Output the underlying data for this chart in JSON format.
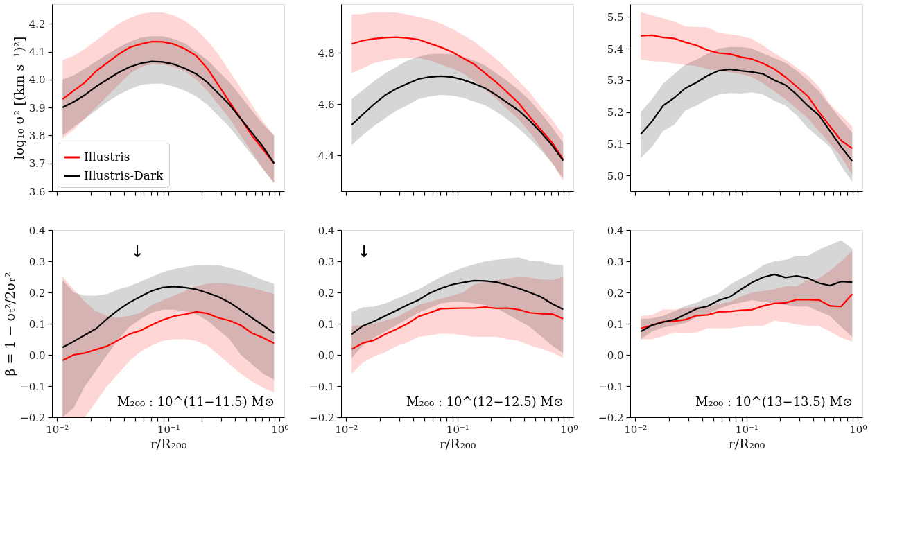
{
  "chart_data": [
    {
      "type": "line",
      "ylabel": "log₁₀ σ² [(km s⁻¹)²]",
      "log": "x",
      "tick_labels": "y",
      "legend": "bottom left",
      "xlim": [
        0.009,
        1.1
      ],
      "xticks": [
        {
          "value": 0.01,
          "label": null
        },
        {
          "value": 0.02,
          "label": null
        },
        {
          "value": 0.03,
          "label": null
        },
        {
          "value": 0.04,
          "label": null
        },
        {
          "value": 0.05,
          "label": null
        },
        {
          "value": 0.06,
          "label": null
        },
        {
          "value": 0.07,
          "label": null
        },
        {
          "value": 0.08,
          "label": null
        },
        {
          "value": 0.09,
          "label": null
        },
        {
          "value": 0.1,
          "label": null
        },
        {
          "value": 0.2,
          "label": null
        },
        {
          "value": 0.3,
          "label": null
        },
        {
          "value": 0.4,
          "label": null
        },
        {
          "value": 0.5,
          "label": null
        },
        {
          "value": 0.6,
          "label": null
        },
        {
          "value": 0.7,
          "label": null
        },
        {
          "value": 0.8,
          "label": null
        },
        {
          "value": 0.9,
          "label": null
        },
        {
          "value": 1,
          "label": null
        }
      ],
      "ylim": [
        3.6,
        4.27
      ],
      "yticks": [
        3.6,
        3.7,
        3.8,
        3.9,
        {
          "value": 4,
          "label": "4.0"
        },
        4.1,
        4.2
      ],
      "x": [
        0.0112,
        0.0141,
        0.0178,
        0.0224,
        0.0282,
        0.0355,
        0.0447,
        0.0562,
        0.0708,
        0.0891,
        0.112,
        0.141,
        0.178,
        0.224,
        0.282,
        0.355,
        0.447,
        0.562,
        0.708,
        0.891
      ],
      "series": [
        {
          "name": "Illustris",
          "color": "#ff0000",
          "values": [
            3.93,
            3.96,
            3.99,
            4.03,
            4.06,
            4.09,
            4.115,
            4.127,
            4.136,
            4.135,
            4.127,
            4.11,
            4.085,
            4.04,
            3.98,
            3.92,
            3.86,
            3.8,
            3.75,
            3.7
          ],
          "lower": [
            3.79,
            3.82,
            3.86,
            3.9,
            3.94,
            3.98,
            4.02,
            4.045,
            4.055,
            4.055,
            4.045,
            4.03,
            4.0,
            3.96,
            3.91,
            3.86,
            3.8,
            3.74,
            3.68,
            3.63
          ],
          "upper": [
            4.07,
            4.085,
            4.11,
            4.14,
            4.17,
            4.2,
            4.22,
            4.235,
            4.24,
            4.24,
            4.23,
            4.21,
            4.18,
            4.14,
            4.09,
            4.03,
            3.97,
            3.91,
            3.85,
            3.8
          ]
        },
        {
          "name": "Illustris-Dark",
          "color": "#000000",
          "values": [
            3.9,
            3.92,
            3.945,
            3.975,
            4.0,
            4.025,
            4.045,
            4.058,
            4.065,
            4.063,
            4.055,
            4.04,
            4.02,
            3.99,
            3.95,
            3.91,
            3.86,
            3.81,
            3.76,
            3.7
          ],
          "lower": [
            3.8,
            3.83,
            3.86,
            3.89,
            3.92,
            3.945,
            3.965,
            3.98,
            3.985,
            3.985,
            3.975,
            3.96,
            3.94,
            3.91,
            3.87,
            3.83,
            3.78,
            3.73,
            3.68,
            3.63
          ],
          "upper": [
            4.0,
            4.015,
            4.04,
            4.065,
            4.09,
            4.115,
            4.135,
            4.15,
            4.155,
            4.155,
            4.145,
            4.13,
            4.1,
            4.07,
            4.03,
            3.99,
            3.94,
            3.89,
            3.84,
            3.8
          ]
        }
      ]
    },
    {
      "type": "line",
      "log": "x",
      "tick_labels": "y",
      "xlim": [
        0.009,
        1.1
      ],
      "xticks": [
        {
          "value": 0.01,
          "label": null
        },
        {
          "value": 0.02,
          "label": null
        },
        {
          "value": 0.03,
          "label": null
        },
        {
          "value": 0.04,
          "label": null
        },
        {
          "value": 0.05,
          "label": null
        },
        {
          "value": 0.06,
          "label": null
        },
        {
          "value": 0.07,
          "label": null
        },
        {
          "value": 0.08,
          "label": null
        },
        {
          "value": 0.09,
          "label": null
        },
        {
          "value": 0.1,
          "label": null
        },
        {
          "value": 0.2,
          "label": null
        },
        {
          "value": 0.3,
          "label": null
        },
        {
          "value": 0.4,
          "label": null
        },
        {
          "value": 0.5,
          "label": null
        },
        {
          "value": 0.6,
          "label": null
        },
        {
          "value": 0.7,
          "label": null
        },
        {
          "value": 0.8,
          "label": null
        },
        {
          "value": 0.9,
          "label": null
        },
        {
          "value": 1,
          "label": null
        }
      ],
      "ylim": [
        4.26,
        4.99
      ],
      "yticks": [
        4.4,
        4.6,
        4.8
      ],
      "x": [
        0.0112,
        0.0141,
        0.0178,
        0.0224,
        0.0282,
        0.0355,
        0.0447,
        0.0562,
        0.0708,
        0.0891,
        0.112,
        0.141,
        0.178,
        0.224,
        0.282,
        0.355,
        0.447,
        0.562,
        0.708,
        0.891
      ],
      "series": [
        {
          "color": "#ff0000",
          "values": [
            4.835,
            4.848,
            4.855,
            4.859,
            4.861,
            4.858,
            4.852,
            4.837,
            4.822,
            4.804,
            4.78,
            4.756,
            4.72,
            4.685,
            4.645,
            4.604,
            4.55,
            4.5,
            4.45,
            4.385
          ],
          "lower": [
            4.72,
            4.74,
            4.76,
            4.77,
            4.778,
            4.78,
            4.78,
            4.77,
            4.755,
            4.74,
            4.72,
            4.69,
            4.655,
            4.62,
            4.58,
            4.54,
            4.49,
            4.43,
            4.37,
            4.3
          ],
          "upper": [
            4.95,
            4.952,
            4.958,
            4.958,
            4.957,
            4.95,
            4.94,
            4.93,
            4.915,
            4.895,
            4.87,
            4.845,
            4.81,
            4.775,
            4.735,
            4.69,
            4.645,
            4.59,
            4.54,
            4.48
          ]
        },
        {
          "color": "#000000",
          "values": [
            4.519,
            4.56,
            4.6,
            4.635,
            4.66,
            4.68,
            4.698,
            4.706,
            4.709,
            4.706,
            4.695,
            4.68,
            4.662,
            4.635,
            4.605,
            4.575,
            4.535,
            4.49,
            4.44,
            4.38
          ],
          "lower": [
            4.44,
            4.48,
            4.515,
            4.545,
            4.575,
            4.595,
            4.62,
            4.63,
            4.636,
            4.633,
            4.625,
            4.61,
            4.595,
            4.57,
            4.54,
            4.505,
            4.465,
            4.42,
            4.37,
            4.31
          ],
          "upper": [
            4.62,
            4.655,
            4.69,
            4.72,
            4.745,
            4.77,
            4.785,
            4.795,
            4.797,
            4.795,
            4.785,
            4.77,
            4.75,
            4.72,
            4.69,
            4.655,
            4.615,
            4.565,
            4.51,
            4.45
          ]
        }
      ]
    },
    {
      "type": "line",
      "log": "x",
      "tick_labels": "y",
      "xlim": [
        0.009,
        1.1
      ],
      "xticks": [
        {
          "value": 0.01,
          "label": null
        },
        {
          "value": 0.02,
          "label": null
        },
        {
          "value": 0.03,
          "label": null
        },
        {
          "value": 0.04,
          "label": null
        },
        {
          "value": 0.05,
          "label": null
        },
        {
          "value": 0.06,
          "label": null
        },
        {
          "value": 0.07,
          "label": null
        },
        {
          "value": 0.08,
          "label": null
        },
        {
          "value": 0.09,
          "label": null
        },
        {
          "value": 0.1,
          "label": null
        },
        {
          "value": 0.2,
          "label": null
        },
        {
          "value": 0.3,
          "label": null
        },
        {
          "value": 0.4,
          "label": null
        },
        {
          "value": 0.5,
          "label": null
        },
        {
          "value": 0.6,
          "label": null
        },
        {
          "value": 0.7,
          "label": null
        },
        {
          "value": 0.8,
          "label": null
        },
        {
          "value": 0.9,
          "label": null
        },
        {
          "value": 1,
          "label": null
        }
      ],
      "ylim": [
        4.95,
        5.54
      ],
      "yticks": [
        {
          "value": 5,
          "label": "5.0"
        },
        5.1,
        5.2,
        5.3,
        5.4,
        5.5
      ],
      "x": [
        0.0112,
        0.0141,
        0.0178,
        0.0224,
        0.0282,
        0.0355,
        0.0447,
        0.0562,
        0.0708,
        0.0891,
        0.112,
        0.141,
        0.178,
        0.224,
        0.282,
        0.355,
        0.447,
        0.562,
        0.708,
        0.891
      ],
      "series": [
        {
          "color": "#ff0000",
          "values": [
            5.44,
            5.442,
            5.435,
            5.432,
            5.42,
            5.41,
            5.395,
            5.386,
            5.383,
            5.373,
            5.367,
            5.353,
            5.335,
            5.31,
            5.28,
            5.25,
            5.2,
            5.155,
            5.11,
            5.085
          ],
          "lower": [
            5.365,
            5.36,
            5.358,
            5.353,
            5.348,
            5.345,
            5.335,
            5.33,
            5.325,
            5.32,
            5.31,
            5.29,
            5.265,
            5.24,
            5.21,
            5.18,
            5.14,
            5.1,
            5.06,
            5.0
          ],
          "upper": [
            5.515,
            5.505,
            5.495,
            5.485,
            5.47,
            5.468,
            5.467,
            5.45,
            5.445,
            5.44,
            5.43,
            5.41,
            5.385,
            5.365,
            5.34,
            5.315,
            5.28,
            5.225,
            5.19,
            5.155
          ]
        },
        {
          "color": "#000000",
          "values": [
            5.13,
            5.17,
            5.22,
            5.245,
            5.275,
            5.293,
            5.315,
            5.33,
            5.335,
            5.33,
            5.326,
            5.32,
            5.3,
            5.285,
            5.255,
            5.22,
            5.19,
            5.14,
            5.09,
            5.045
          ],
          "lower": [
            5.055,
            5.09,
            5.14,
            5.16,
            5.205,
            5.22,
            5.24,
            5.255,
            5.26,
            5.258,
            5.262,
            5.255,
            5.235,
            5.22,
            5.19,
            5.15,
            5.12,
            5.09,
            5.03,
            4.98
          ],
          "upper": [
            5.2,
            5.24,
            5.29,
            5.32,
            5.35,
            5.365,
            5.385,
            5.4,
            5.405,
            5.405,
            5.4,
            5.385,
            5.37,
            5.355,
            5.33,
            5.3,
            5.265,
            5.22,
            5.175,
            5.135
          ]
        }
      ]
    },
    {
      "type": "line",
      "ylabel": "β = 1 − σₜ²/2σᵣ²",
      "xlabel": "r/R₂₀₀",
      "log": "x",
      "annotations": [
        "↓",
        "M₂₀₀ : 10^(11−11.5) M⊙"
      ],
      "xlim": [
        0.009,
        1.1
      ],
      "xticks": [
        {
          "value": 0.01,
          "label": "10⁻²"
        },
        {
          "value": 0.02,
          "label": null
        },
        {
          "value": 0.03,
          "label": null
        },
        {
          "value": 0.04,
          "label": null
        },
        {
          "value": 0.05,
          "label": null
        },
        {
          "value": 0.06,
          "label": null
        },
        {
          "value": 0.07,
          "label": null
        },
        {
          "value": 0.08,
          "label": null
        },
        {
          "value": 0.09,
          "label": null
        },
        {
          "value": 0.1,
          "label": "10⁻¹"
        },
        {
          "value": 0.2,
          "label": null
        },
        {
          "value": 0.3,
          "label": null
        },
        {
          "value": 0.4,
          "label": null
        },
        {
          "value": 0.5,
          "label": null
        },
        {
          "value": 0.6,
          "label": null
        },
        {
          "value": 0.7,
          "label": null
        },
        {
          "value": 0.8,
          "label": null
        },
        {
          "value": 0.9,
          "label": null
        },
        {
          "value": 1,
          "label": "10⁰"
        }
      ],
      "ylim": [
        -0.2,
        0.4
      ],
      "yticks": [
        -0.2,
        -0.1,
        {
          "value": 0,
          "label": "0.0"
        },
        0.1,
        0.2,
        0.3,
        0.4
      ],
      "x": [
        0.0112,
        0.0141,
        0.0178,
        0.0224,
        0.0282,
        0.0355,
        0.0447,
        0.0562,
        0.0708,
        0.0891,
        0.112,
        0.141,
        0.178,
        0.224,
        0.282,
        0.355,
        0.447,
        0.562,
        0.708,
        0.891
      ],
      "series": [
        {
          "color": "#ff0000",
          "values": [
            -0.018,
            0.0,
            0.006,
            0.017,
            0.028,
            0.047,
            0.067,
            0.078,
            0.096,
            0.112,
            0.124,
            0.13,
            0.138,
            0.133,
            0.119,
            0.11,
            0.095,
            0.07,
            0.055,
            0.037
          ],
          "lower": [
            -0.2,
            -0.2,
            -0.2,
            -0.15,
            -0.1,
            -0.06,
            -0.02,
            0.01,
            0.03,
            0.045,
            0.05,
            0.05,
            0.045,
            0.03,
            0.0,
            -0.03,
            -0.06,
            -0.085,
            -0.105,
            -0.12
          ],
          "upper": [
            0.25,
            0.21,
            0.17,
            0.14,
            0.125,
            0.12,
            0.125,
            0.135,
            0.16,
            0.175,
            0.19,
            0.205,
            0.22,
            0.228,
            0.23,
            0.228,
            0.222,
            0.215,
            0.205,
            0.195
          ]
        },
        {
          "color": "#000000",
          "values": [
            0.024,
            0.043,
            0.064,
            0.084,
            0.116,
            0.144,
            0.168,
            0.187,
            0.205,
            0.216,
            0.219,
            0.216,
            0.21,
            0.199,
            0.186,
            0.168,
            0.144,
            0.119,
            0.095,
            0.07
          ],
          "lower": [
            -0.2,
            -0.17,
            -0.1,
            -0.05,
            0.0,
            0.05,
            0.09,
            0.115,
            0.135,
            0.145,
            0.145,
            0.14,
            0.13,
            0.11,
            0.08,
            0.05,
            0.0,
            -0.03,
            -0.06,
            -0.08
          ],
          "upper": [
            0.24,
            0.2,
            0.19,
            0.19,
            0.195,
            0.21,
            0.22,
            0.235,
            0.25,
            0.265,
            0.275,
            0.282,
            0.287,
            0.288,
            0.287,
            0.28,
            0.27,
            0.255,
            0.24,
            0.228
          ]
        }
      ]
    },
    {
      "type": "line",
      "xlabel": "r/R₂₀₀",
      "log": "x",
      "annotations": [
        "↓",
        "M₂₀₀ : 10^(12−12.5) M⊙"
      ],
      "xlim": [
        0.009,
        1.1
      ],
      "xticks": [
        {
          "value": 0.01,
          "label": "10⁻²"
        },
        {
          "value": 0.02,
          "label": null
        },
        {
          "value": 0.03,
          "label": null
        },
        {
          "value": 0.04,
          "label": null
        },
        {
          "value": 0.05,
          "label": null
        },
        {
          "value": 0.06,
          "label": null
        },
        {
          "value": 0.07,
          "label": null
        },
        {
          "value": 0.08,
          "label": null
        },
        {
          "value": 0.09,
          "label": null
        },
        {
          "value": 0.1,
          "label": "10⁻¹"
        },
        {
          "value": 0.2,
          "label": null
        },
        {
          "value": 0.3,
          "label": null
        },
        {
          "value": 0.4,
          "label": null
        },
        {
          "value": 0.5,
          "label": null
        },
        {
          "value": 0.6,
          "label": null
        },
        {
          "value": 0.7,
          "label": null
        },
        {
          "value": 0.8,
          "label": null
        },
        {
          "value": 0.9,
          "label": null
        },
        {
          "value": 1,
          "label": "10⁰"
        }
      ],
      "ylim": [
        -0.2,
        0.4
      ],
      "yticks": [
        -0.2,
        -0.1,
        {
          "value": 0,
          "label": "0.0"
        },
        0.1,
        0.2,
        0.3,
        0.4
      ],
      "x": [
        0.0112,
        0.0141,
        0.0178,
        0.0224,
        0.0282,
        0.0355,
        0.0447,
        0.0562,
        0.0708,
        0.0891,
        0.112,
        0.141,
        0.178,
        0.224,
        0.282,
        0.355,
        0.447,
        0.562,
        0.708,
        0.891
      ],
      "series": [
        {
          "color": "#ff0000",
          "values": [
            0.018,
            0.038,
            0.047,
            0.066,
            0.082,
            0.1,
            0.123,
            0.135,
            0.148,
            0.149,
            0.15,
            0.15,
            0.153,
            0.149,
            0.15,
            0.145,
            0.135,
            0.132,
            0.131,
            0.116
          ],
          "lower": [
            -0.06,
            -0.025,
            -0.005,
            0.008,
            0.028,
            0.04,
            0.058,
            0.062,
            0.068,
            0.067,
            0.063,
            0.058,
            0.058,
            0.058,
            0.05,
            0.045,
            0.03,
            0.02,
            0.007,
            -0.01
          ],
          "upper": [
            0.093,
            0.095,
            0.1,
            0.11,
            0.12,
            0.14,
            0.16,
            0.17,
            0.18,
            0.19,
            0.2,
            0.225,
            0.235,
            0.24,
            0.245,
            0.25,
            0.248,
            0.242,
            0.24,
            0.25
          ]
        },
        {
          "color": "#000000",
          "values": [
            0.066,
            0.093,
            0.108,
            0.125,
            0.142,
            0.16,
            0.176,
            0.198,
            0.213,
            0.225,
            0.232,
            0.238,
            0.237,
            0.233,
            0.224,
            0.213,
            0.2,
            0.186,
            0.164,
            0.146
          ],
          "lower": [
            -0.01,
            0.03,
            0.055,
            0.075,
            0.095,
            0.115,
            0.135,
            0.15,
            0.165,
            0.17,
            0.17,
            0.165,
            0.16,
            0.15,
            0.13,
            0.11,
            0.09,
            0.06,
            0.03,
            0.005
          ],
          "upper": [
            0.137,
            0.152,
            0.155,
            0.165,
            0.18,
            0.195,
            0.21,
            0.23,
            0.25,
            0.265,
            0.28,
            0.29,
            0.3,
            0.305,
            0.31,
            0.313,
            0.302,
            0.3,
            0.29,
            0.288
          ]
        }
      ]
    },
    {
      "type": "line",
      "xlabel": "r/R₂₀₀",
      "log": "x",
      "annotations": [
        "M₂₀₀ : 10^(13−13.5) M⊙"
      ],
      "xlim": [
        0.009,
        1.1
      ],
      "xticks": [
        {
          "value": 0.01,
          "label": "10⁻²"
        },
        {
          "value": 0.02,
          "label": null
        },
        {
          "value": 0.03,
          "label": null
        },
        {
          "value": 0.04,
          "label": null
        },
        {
          "value": 0.05,
          "label": null
        },
        {
          "value": 0.06,
          "label": null
        },
        {
          "value": 0.07,
          "label": null
        },
        {
          "value": 0.08,
          "label": null
        },
        {
          "value": 0.09,
          "label": null
        },
        {
          "value": 0.1,
          "label": "10⁻¹"
        },
        {
          "value": 0.2,
          "label": null
        },
        {
          "value": 0.3,
          "label": null
        },
        {
          "value": 0.4,
          "label": null
        },
        {
          "value": 0.5,
          "label": null
        },
        {
          "value": 0.6,
          "label": null
        },
        {
          "value": 0.7,
          "label": null
        },
        {
          "value": 0.8,
          "label": null
        },
        {
          "value": 0.9,
          "label": null
        },
        {
          "value": 1,
          "label": "10⁰"
        }
      ],
      "ylim": [
        -0.2,
        0.4
      ],
      "yticks": [
        -0.2,
        -0.1,
        {
          "value": 0,
          "label": "0.0"
        },
        0.1,
        0.2,
        0.3,
        0.4
      ],
      "x": [
        0.0112,
        0.0141,
        0.0178,
        0.0224,
        0.0282,
        0.0355,
        0.0447,
        0.0562,
        0.0708,
        0.0891,
        0.112,
        0.141,
        0.178,
        0.224,
        0.282,
        0.355,
        0.447,
        0.562,
        0.708,
        0.891
      ],
      "series": [
        {
          "color": "#ff0000",
          "values": [
            0.085,
            0.095,
            0.107,
            0.108,
            0.113,
            0.126,
            0.128,
            0.138,
            0.139,
            0.143,
            0.145,
            0.157,
            0.165,
            0.167,
            0.177,
            0.177,
            0.176,
            0.157,
            0.155,
            0.195
          ],
          "lower": [
            0.05,
            0.05,
            0.06,
            0.072,
            0.07,
            0.072,
            0.085,
            0.085,
            0.085,
            0.09,
            0.093,
            0.093,
            0.11,
            0.105,
            0.098,
            0.093,
            0.093,
            0.075,
            0.055,
            0.042
          ],
          "upper": [
            0.125,
            0.127,
            0.146,
            0.145,
            0.15,
            0.155,
            0.155,
            0.163,
            0.17,
            0.188,
            0.2,
            0.205,
            0.21,
            0.22,
            0.22,
            0.24,
            0.245,
            0.27,
            0.3,
            0.335
          ]
        },
        {
          "color": "#000000",
          "values": [
            0.075,
            0.095,
            0.105,
            0.113,
            0.13,
            0.148,
            0.156,
            0.175,
            0.186,
            0.21,
            0.232,
            0.249,
            0.258,
            0.248,
            0.253,
            0.246,
            0.23,
            0.222,
            0.235,
            0.233
          ],
          "lower": [
            0.05,
            0.075,
            0.088,
            0.095,
            0.102,
            0.12,
            0.13,
            0.148,
            0.16,
            0.168,
            0.175,
            0.17,
            0.165,
            0.16,
            0.155,
            0.155,
            0.14,
            0.125,
            0.09,
            0.058
          ],
          "upper": [
            0.115,
            0.117,
            0.125,
            0.14,
            0.157,
            0.167,
            0.185,
            0.197,
            0.225,
            0.245,
            0.262,
            0.288,
            0.3,
            0.305,
            0.318,
            0.318,
            0.338,
            0.352,
            0.368,
            0.34
          ]
        }
      ]
    }
  ]
}
